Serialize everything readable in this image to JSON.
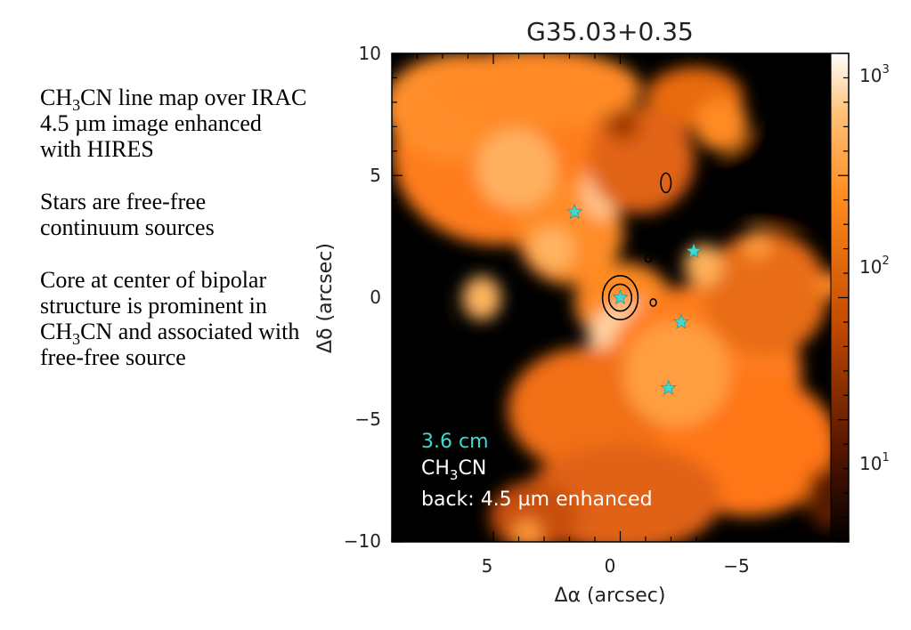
{
  "caption": {
    "p1": {
      "a": "CH",
      "sub": "3",
      "b": "CN line map over IRAC 4.5 µm image enhanced with HIRES"
    },
    "p2": "Stars are free-free continuum sources",
    "p3": {
      "a": "Core at center of bipolar structure is prominent in CH",
      "sub": "3",
      "b": "CN and associated with free-free source"
    }
  },
  "figure": {
    "title": "G35.03+0.35",
    "legend": {
      "cm": "3.6 cm",
      "line_a": "CH",
      "line_sub": "3",
      "line_b": "CN",
      "back": "back: 4.5 µm enhanced"
    },
    "colors": {
      "cyan": "#3fd9d1",
      "white": "#ffffff",
      "black": "#000000",
      "orange": "#ff8a1c"
    }
  },
  "chart_data": {
    "type": "heatmap",
    "title": "G35.03+0.35",
    "xlabel": "Δα (arcsec)",
    "ylabel": "Δδ (arcsec)",
    "xlim": [
      9,
      -9
    ],
    "ylim": [
      -10,
      10
    ],
    "x_ticks": [
      "5",
      "0",
      "−5"
    ],
    "y_ticks": [
      "10",
      "5",
      "0",
      "−5",
      "−10"
    ],
    "colorbar": {
      "scale": "log",
      "ticks": [
        "10",
        "10",
        "10"
      ],
      "exponents": [
        "3",
        "2",
        "1"
      ]
    },
    "ff_sources": [
      {
        "x": 1.8,
        "y": 3.5
      },
      {
        "x": 0.0,
        "y": 0.0
      },
      {
        "x": -2.9,
        "y": 1.9
      },
      {
        "x": -2.4,
        "y": -1.0
      },
      {
        "x": -1.9,
        "y": -3.7
      }
    ],
    "ch3cn_contours": [
      {
        "x": 0.0,
        "y": 0.0,
        "rx": 0.7,
        "ry": 0.9
      },
      {
        "x": 0.0,
        "y": 0.0,
        "rx": 0.45,
        "ry": 0.55
      },
      {
        "x": -1.8,
        "y": 4.7,
        "rx": 0.2,
        "ry": 0.4
      },
      {
        "x": -1.1,
        "y": 1.6,
        "rx": 0.12,
        "ry": 0.15
      },
      {
        "x": -1.3,
        "y": -0.2,
        "rx": 0.12,
        "ry": 0.15
      }
    ]
  }
}
